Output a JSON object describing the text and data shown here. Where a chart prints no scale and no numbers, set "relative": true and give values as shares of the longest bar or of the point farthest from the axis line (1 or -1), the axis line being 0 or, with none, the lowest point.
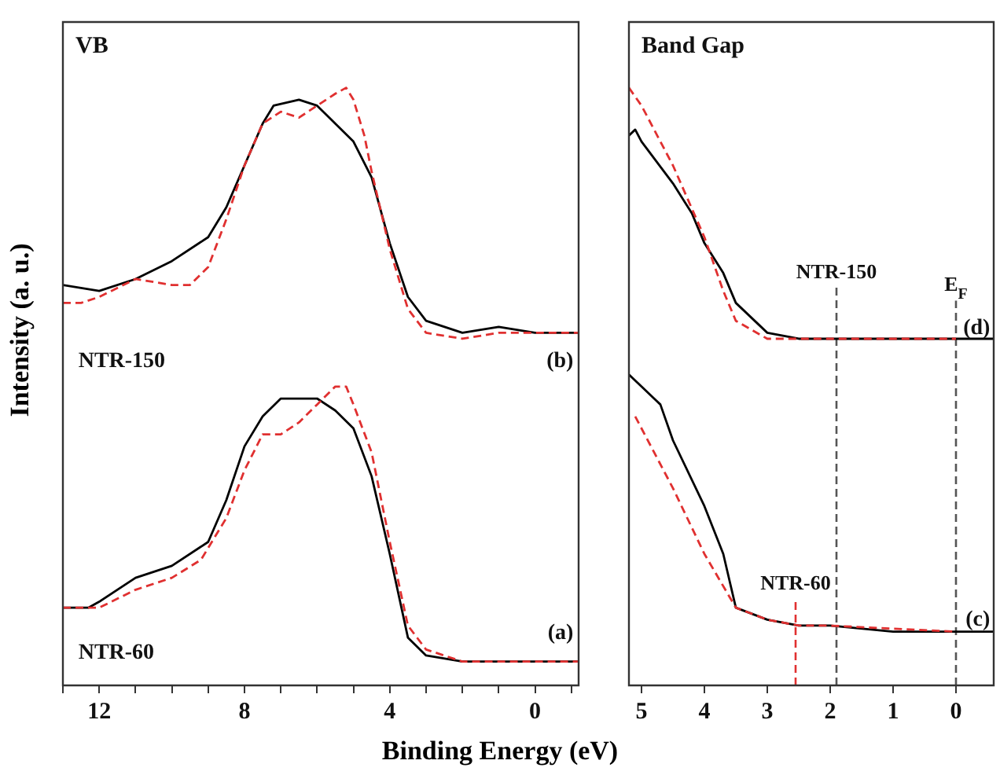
{
  "chart_data": [
    {
      "type": "line",
      "title": "VB",
      "ylabel": "Intensity (a. u.)",
      "xlabel": "Binding Energy (eV)",
      "relative": true,
      "xlim": [
        13.0,
        -1.2
      ],
      "xticks": [
        {
          "value": 13,
          "label": null
        },
        12,
        {
          "value": 11,
          "label": null
        },
        {
          "value": 10,
          "label": null
        },
        {
          "value": 9,
          "label": null
        },
        8,
        {
          "value": 7,
          "label": null
        },
        {
          "value": 6,
          "label": null
        },
        {
          "value": 5,
          "label": null
        },
        4,
        {
          "value": 3,
          "label": null
        },
        {
          "value": 2,
          "label": null
        },
        {
          "value": 1,
          "label": null
        },
        0,
        {
          "value": -1,
          "label": null
        }
      ],
      "tick_labels": "x",
      "grid": false,
      "legend": false,
      "marker": "none",
      "series": [
        {
          "color": "#000000",
          "line_style": "solid",
          "x": [
            13,
            12,
            11,
            10,
            9,
            8.5,
            8,
            7.5,
            7.2,
            6.5,
            6,
            5.5,
            5,
            4.5,
            4,
            3.5,
            3,
            2,
            1,
            0,
            -1.2
          ],
          "values": [
            0.67,
            0.66,
            0.68,
            0.71,
            0.75,
            0.8,
            0.87,
            0.94,
            0.97,
            0.98,
            0.97,
            0.94,
            0.91,
            0.85,
            0.74,
            0.65,
            0.61,
            0.59,
            0.6,
            0.59,
            0.59
          ]
        },
        {
          "color": "#e03030",
          "line_style": "dashed",
          "x": [
            13,
            12.5,
            12,
            11,
            10,
            9.5,
            9,
            8.5,
            8,
            7.5,
            7,
            6.5,
            6,
            5.5,
            5.2,
            5,
            4.7,
            4.5,
            4,
            3.5,
            3,
            2,
            1,
            0,
            -1.2
          ],
          "values": [
            0.64,
            0.64,
            0.65,
            0.68,
            0.67,
            0.67,
            0.7,
            0.78,
            0.87,
            0.94,
            0.96,
            0.95,
            0.97,
            0.99,
            1.0,
            0.98,
            0.92,
            0.86,
            0.73,
            0.63,
            0.59,
            0.58,
            0.59,
            0.59,
            0.59
          ]
        },
        {
          "color": "#000000",
          "line_style": "solid",
          "x": [
            13,
            12.3,
            12,
            11,
            10,
            9,
            8.5,
            8,
            7.5,
            7,
            6.5,
            6,
            5.5,
            5,
            4.5,
            4,
            3.5,
            3,
            2,
            0,
            -1.2
          ],
          "values": [
            0.13,
            0.13,
            0.14,
            0.18,
            0.2,
            0.24,
            0.31,
            0.4,
            0.45,
            0.48,
            0.48,
            0.48,
            0.46,
            0.43,
            0.35,
            0.22,
            0.08,
            0.05,
            0.04,
            0.04,
            0.04
          ]
        },
        {
          "color": "#e03030",
          "line_style": "dashed",
          "x": [
            13,
            12,
            11,
            10,
            9.2,
            8.5,
            8,
            7.5,
            7,
            6.5,
            6,
            5.5,
            5.2,
            5,
            4.5,
            4,
            3.5,
            3,
            2,
            0,
            -1.2
          ],
          "values": [
            0.13,
            0.13,
            0.16,
            0.18,
            0.21,
            0.28,
            0.36,
            0.42,
            0.42,
            0.44,
            0.47,
            0.5,
            0.5,
            0.47,
            0.39,
            0.24,
            0.1,
            0.06,
            0.04,
            0.04,
            0.04
          ]
        }
      ],
      "annotations": [
        "NTR-150",
        "(b)",
        "NTR-60",
        "(a)"
      ]
    },
    {
      "type": "line",
      "title": "Band Gap",
      "relative": true,
      "xlim": [
        5.2,
        -0.6
      ],
      "xticks": [
        5,
        4,
        3,
        2,
        1,
        0
      ],
      "tick_labels": "x",
      "grid": false,
      "legend": false,
      "marker": "none",
      "series": [
        {
          "color": "#000000",
          "line_style": "solid",
          "x": [
            5.2,
            5.1,
            5,
            4.5,
            4.2,
            4,
            3.7,
            3.5,
            3,
            2.5,
            2,
            1,
            0,
            -0.6
          ],
          "values": [
            0.92,
            0.93,
            0.91,
            0.84,
            0.79,
            0.74,
            0.69,
            0.64,
            0.59,
            0.58,
            0.58,
            0.58,
            0.58,
            0.58
          ]
        },
        {
          "color": "#e03030",
          "line_style": "dashed",
          "x": [
            5.2,
            5,
            4.5,
            4,
            3.7,
            3.5,
            3,
            2,
            1,
            0
          ],
          "values": [
            1.0,
            0.97,
            0.87,
            0.75,
            0.66,
            0.61,
            0.58,
            0.58,
            0.58,
            0.58
          ]
        },
        {
          "color": "#000000",
          "line_style": "solid",
          "x": [
            5.2,
            5,
            4.7,
            4.5,
            4,
            3.7,
            3.5,
            3,
            2.5,
            2,
            1,
            0,
            -0.6
          ],
          "values": [
            0.52,
            0.5,
            0.47,
            0.41,
            0.3,
            0.22,
            0.13,
            0.11,
            0.1,
            0.1,
            0.09,
            0.09,
            0.09
          ]
        },
        {
          "color": "#e03030",
          "line_style": "dashed",
          "x": [
            5.1,
            4.8,
            4.5,
            4,
            3.5,
            3,
            2.5,
            2,
            0
          ],
          "values": [
            0.45,
            0.39,
            0.33,
            0.22,
            0.13,
            0.11,
            0.1,
            0.1,
            0.09
          ]
        }
      ],
      "ref_lines": [
        {
          "axis": "x",
          "value": 1.9,
          "label": "NTR-150",
          "color": "#555555",
          "line_style": "dashed"
        },
        {
          "axis": "x",
          "value": 0,
          "label": "E$_{F}$",
          "color": "#555555",
          "line_style": "dashed"
        },
        {
          "axis": "x",
          "value": 2.55,
          "label": "NTR-60",
          "color": "#e03030",
          "line_style": "dashed"
        }
      ],
      "annotations": [
        "(d)",
        "(c)"
      ]
    }
  ]
}
